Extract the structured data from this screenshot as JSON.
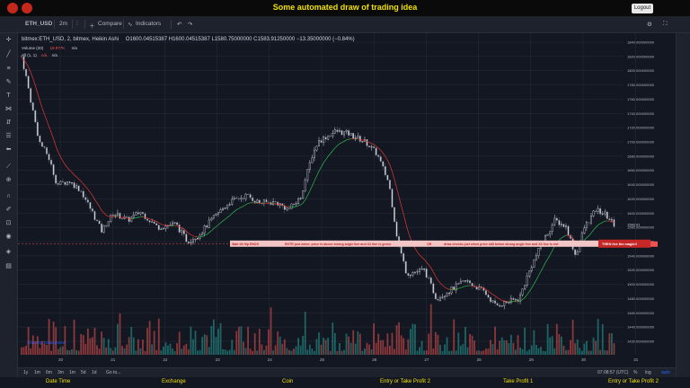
{
  "app": {
    "title": "Some automated draw of trading idea",
    "logout_label": "Logout",
    "logo_color": "#c4281c"
  },
  "toolbar": {
    "symbol": "ETH_USD",
    "interval": "2m",
    "compare_label": "Compare",
    "indicators_label": "Indicators"
  },
  "legend": {
    "symbol_line": "bitmex:ETH_USD, 2, bitmex, Heikin Ashi",
    "ohlc": "O1600.04515387 H1600.04515387 L1580.75000000 C1583.91250000 −13.35000000 (−0.84%)",
    "volume_label": "Volume (20)",
    "volume_value": "18.977K",
    "volume_na": "n/a",
    "all_label": "All (1, 1)",
    "all_na1": "n/a",
    "all_na2": "n/a"
  },
  "price_axis": {
    "ticks": [
      "1840.000000000",
      "1820.000000000",
      "1800.000000000",
      "1780.000000000",
      "1760.000000000",
      "1740.000000000",
      "1720.000000000",
      "1700.000000000",
      "1680.000000000",
      "1660.000000000",
      "1640.000000000",
      "1620.000000000",
      "1600.000000000",
      "1580.000000000",
      "1560.000000000",
      "1540.000000000",
      "1520.000000000",
      "1500.000000000",
      "1480.000000000",
      "1460.000000000",
      "1440.000000000",
      "1420.000000000"
    ],
    "current_price": "1583.91",
    "level_price": "1556.48899021"
  },
  "annotations": {
    "text1": "Wait till flip ENDS",
    "text2": "ENTR just when: price is above strong angle line and X2 line is green",
    "text3": "OR",
    "text4": "draw checks just when price still below strong angle line and X2 line is red",
    "text5": "THEN live the magic!!"
  },
  "watermark": "Chart by TradingView",
  "time_axis": {
    "labels": [
      "20",
      "21",
      "22",
      "23",
      "24",
      "25",
      "26",
      "27",
      "28",
      "29",
      "30",
      "31"
    ],
    "time": "07:08:57 (UTC)"
  },
  "ranges": [
    "1y",
    "1m",
    "6m",
    "3m",
    "1m",
    "5d",
    "1d",
    "Go to..."
  ],
  "axis_opts": {
    "pct": "%",
    "log": "log",
    "auto": "auto"
  },
  "footer": {
    "cols": [
      "Date Time",
      "Exchange",
      "Coin",
      "Entry or Take Profit 2",
      "Take Profit 1",
      "Entry or Take Profit 2"
    ]
  },
  "colors": {
    "bull": "#26a69a",
    "bear": "#ef5350",
    "title": "#f0e000",
    "annotation_bg": "#c62828"
  }
}
